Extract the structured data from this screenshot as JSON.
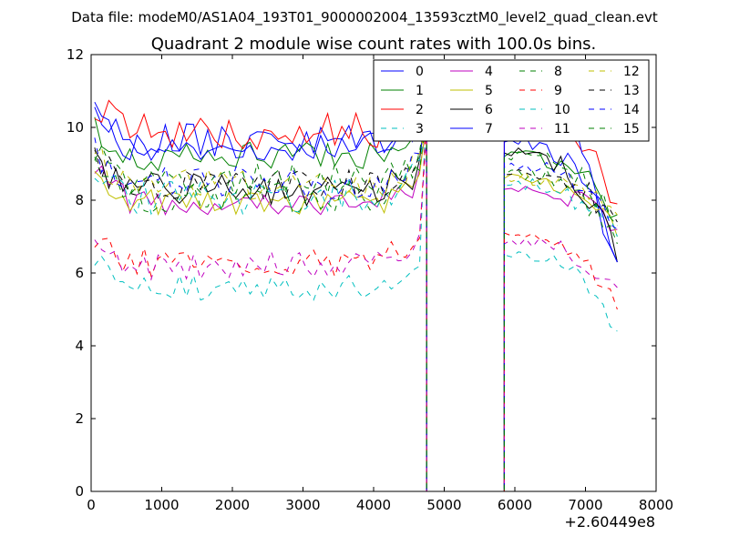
{
  "header": {
    "file_label": "Data file: modeM0/AS1A04_193T01_9000002004_13593cztM0_level2_quad_clean.evt"
  },
  "chart_data": {
    "type": "line",
    "title": "Quadrant 2 module wise count rates with 100.0s bins.",
    "xlabel": "",
    "ylabel": "",
    "x_offset_label": "+2.60449e8",
    "xlim": [
      0,
      8000
    ],
    "ylim": [
      0,
      12
    ],
    "x_ticks": [
      0,
      1000,
      2000,
      3000,
      4000,
      5000,
      6000,
      7000,
      8000
    ],
    "y_ticks": [
      0,
      2,
      4,
      6,
      8,
      10,
      12
    ],
    "x_tick_labels": [
      "0",
      "1000",
      "2000",
      "3000",
      "4000",
      "5000",
      "6000",
      "7000",
      "8000"
    ],
    "y_tick_labels": [
      "0",
      "2",
      "4",
      "6",
      "8",
      "10",
      "12"
    ],
    "grid": false,
    "legend_position": "top-right",
    "segments": [
      {
        "start": 50,
        "end": 4750,
        "step": 100
      },
      {
        "start": 5850,
        "end": 7450,
        "step": 100
      }
    ],
    "gap": {
      "x": [
        4750,
        4950,
        5850
      ],
      "y": [
        0,
        0,
        0
      ]
    },
    "series": [
      {
        "name": "0",
        "color": "#0000ff",
        "dash": "solid",
        "base": 9.6,
        "amp": 0.5,
        "seed": 1,
        "peak": 11.8,
        "seg2_start": 9.6,
        "seg2_end": 6.3
      },
      {
        "name": "1",
        "color": "#008000",
        "dash": "solid",
        "base": 9.2,
        "amp": 0.4,
        "seed": 2,
        "peak": 10.5,
        "seg2_start": 9.2,
        "seg2_end": 7.6
      },
      {
        "name": "2",
        "color": "#ff0000",
        "dash": "solid",
        "base": 9.9,
        "amp": 0.5,
        "seed": 3,
        "peak": 11.0,
        "seg2_start": 10.4,
        "seg2_end": 7.9
      },
      {
        "name": "3",
        "color": "#00bfbf",
        "dash": "dashed",
        "base": 5.6,
        "amp": 0.35,
        "seed": 4,
        "peak": 10.8,
        "seg2_start": 6.5,
        "seg2_end": 4.4
      },
      {
        "name": "4",
        "color": "#bf00bf",
        "dash": "solid",
        "base": 8.0,
        "amp": 0.4,
        "seed": 5,
        "peak": 10.0,
        "seg2_start": 8.3,
        "seg2_end": 7.2
      },
      {
        "name": "5",
        "color": "#bfbf00",
        "dash": "solid",
        "base": 7.9,
        "amp": 0.4,
        "seed": 6,
        "peak": 10.2,
        "seg2_start": 8.6,
        "seg2_end": 7.0
      },
      {
        "name": "6",
        "color": "#000000",
        "dash": "solid",
        "base": 8.3,
        "amp": 0.45,
        "seed": 7,
        "peak": 10.6,
        "seg2_start": 9.3,
        "seg2_end": 6.3
      },
      {
        "name": "7",
        "color": "#0000ff",
        "dash": "solid",
        "base": 9.5,
        "amp": 0.4,
        "seed": 8,
        "peak": 11.6,
        "seg2_start": 11.0,
        "seg2_end": 6.3
      },
      {
        "name": "8",
        "color": "#008000",
        "dash": "dashed",
        "base": 8.1,
        "amp": 0.45,
        "seed": 9,
        "peak": 10.4,
        "seg2_start": 8.7,
        "seg2_end": 6.8
      },
      {
        "name": "9",
        "color": "#ff0000",
        "dash": "dashed",
        "base": 6.3,
        "amp": 0.4,
        "seed": 10,
        "peak": 10.2,
        "seg2_start": 7.1,
        "seg2_end": 5.0
      },
      {
        "name": "10",
        "color": "#00bfbf",
        "dash": "dashed",
        "base": 8.1,
        "amp": 0.5,
        "seed": 11,
        "peak": 10.0,
        "seg2_start": 8.4,
        "seg2_end": 7.0
      },
      {
        "name": "11",
        "color": "#bf00bf",
        "dash": "dashed",
        "base": 6.2,
        "amp": 0.4,
        "seed": 12,
        "peak": 9.8,
        "seg2_start": 6.8,
        "seg2_end": 5.6
      },
      {
        "name": "12",
        "color": "#bfbf00",
        "dash": "dashed",
        "base": 8.4,
        "amp": 0.45,
        "seed": 13,
        "peak": 10.1,
        "seg2_start": 8.6,
        "seg2_end": 7.6
      },
      {
        "name": "13",
        "color": "#000000",
        "dash": "dashed",
        "base": 8.4,
        "amp": 0.45,
        "seed": 14,
        "peak": 10.3,
        "seg2_start": 8.7,
        "seg2_end": 7.4
      },
      {
        "name": "14",
        "color": "#0000ff",
        "dash": "dashed",
        "base": 8.5,
        "amp": 0.45,
        "seed": 15,
        "peak": 10.2,
        "seg2_start": 8.9,
        "seg2_end": 7.2
      },
      {
        "name": "15",
        "color": "#008000",
        "dash": "dashed",
        "base": 8.6,
        "amp": 0.45,
        "seed": 16,
        "peak": 10.5,
        "seg2_start": 9.2,
        "seg2_end": 7.3
      }
    ]
  }
}
